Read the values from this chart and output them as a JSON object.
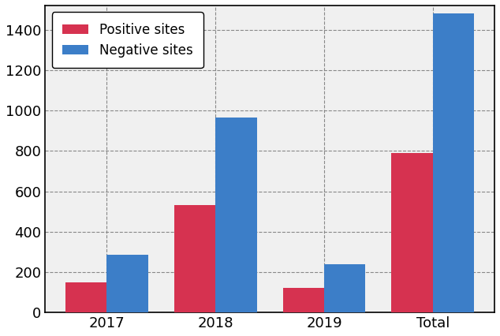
{
  "categories": [
    "2017",
    "2018",
    "2019",
    "Total"
  ],
  "positive_sites": [
    148,
    530,
    123,
    790
  ],
  "negative_sites": [
    285,
    965,
    240,
    1480
  ],
  "positive_color": "#d63250",
  "negative_color": "#3c7ec8",
  "positive_label": "Positive sites",
  "negative_label": "Negative sites",
  "ylim": [
    0,
    1520
  ],
  "yticks": [
    0,
    200,
    400,
    600,
    800,
    1000,
    1200,
    1400
  ],
  "bar_width": 0.38,
  "grid_color": "#888888",
  "grid_style": "--",
  "legend_loc": "upper left",
  "bg_color": "#f0f0f0",
  "fig_bg_color": "#ffffff"
}
